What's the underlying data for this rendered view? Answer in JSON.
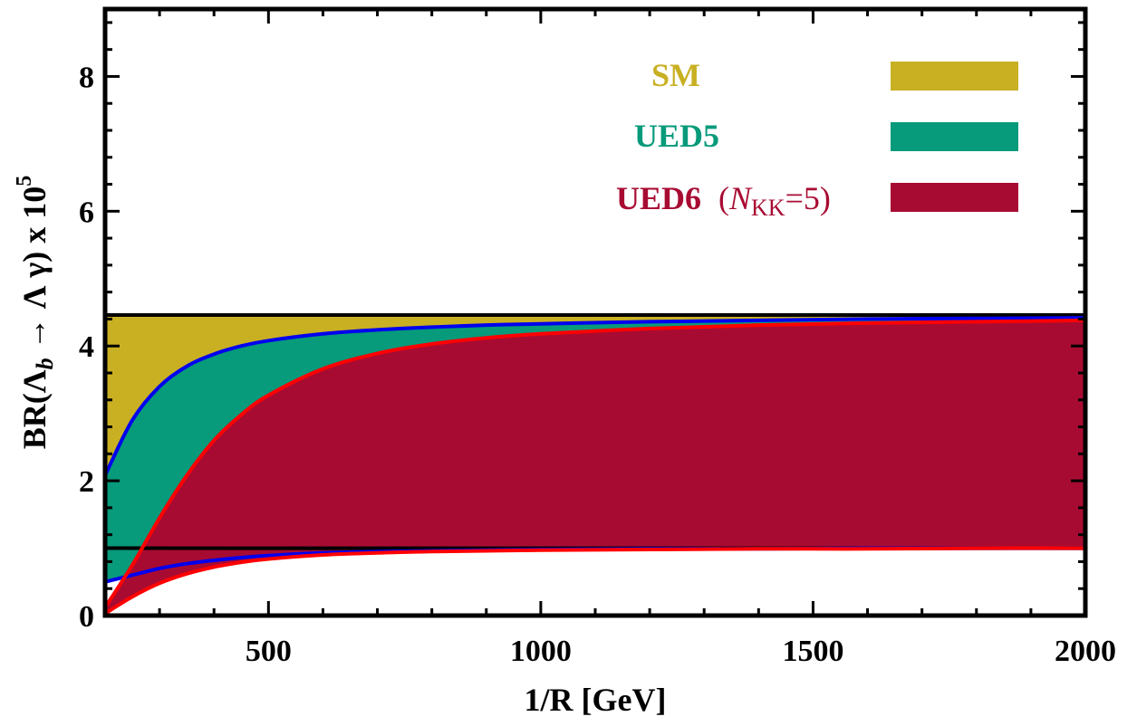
{
  "chart_data": {
    "type": "area",
    "xlabel": "1/R [GeV]",
    "ylabel": {
      "prefix": "BR(Λ",
      "sub": "b",
      "mid": " → Λ γ) x 10",
      "sup": "5"
    },
    "xlim": [
      200,
      2000
    ],
    "ylim": [
      0,
      9
    ],
    "x_ticks": [
      500,
      1000,
      1500,
      2000
    ],
    "y_ticks": [
      0,
      2,
      4,
      6,
      8
    ],
    "x_tick_labels": [
      "500",
      "1000",
      "1500",
      "2000"
    ],
    "y_tick_labels": [
      "0",
      "2",
      "4",
      "6",
      "8"
    ],
    "x_minor_step": 100,
    "y_minor_step": 0.4,
    "grid": false,
    "legend_position": "top-right",
    "legend": [
      {
        "label": "SM",
        "sub_label": "",
        "color": "#C9B023"
      },
      {
        "label": "UED5",
        "sub_label": "",
        "color": "#079A7B"
      },
      {
        "label": "UED6",
        "sub_label": "(N_KK=5)",
        "color": "#A80B32"
      }
    ],
    "sub_label_parts": {
      "open": "(",
      "italic": "N",
      "sub": "KK",
      "rest": "=5)"
    },
    "bands": [
      {
        "name": "SM",
        "color": "#C9B023",
        "edge_color": "#000000",
        "x": [
          200,
          2000
        ],
        "upper": [
          4.46,
          4.46
        ],
        "lower": [
          1.0,
          1.0
        ]
      },
      {
        "name": "UED5",
        "color": "#079A7B",
        "edge_color": "#0000EE",
        "x": [
          200,
          250,
          300,
          350,
          400,
          450,
          500,
          600,
          700,
          800,
          900,
          1000,
          1200,
          1400,
          1600,
          1800,
          2000
        ],
        "upper": [
          2.08,
          2.9,
          3.4,
          3.7,
          3.88,
          4.0,
          4.08,
          4.18,
          4.24,
          4.28,
          4.31,
          4.33,
          4.36,
          4.38,
          4.4,
          4.41,
          4.42
        ],
        "lower": [
          0.5,
          0.6,
          0.7,
          0.77,
          0.82,
          0.86,
          0.89,
          0.93,
          0.95,
          0.96,
          0.97,
          0.98,
          0.99,
          0.99,
          1.0,
          1.0,
          1.0
        ]
      },
      {
        "name": "UED6",
        "color": "#A80B32",
        "edge_color": "#FF0000",
        "x": [
          200,
          250,
          300,
          350,
          400,
          450,
          500,
          600,
          700,
          800,
          900,
          1000,
          1200,
          1400,
          1600,
          1800,
          2000
        ],
        "upper": [
          0.12,
          0.75,
          1.45,
          2.08,
          2.6,
          2.98,
          3.27,
          3.66,
          3.89,
          4.03,
          4.12,
          4.18,
          4.26,
          4.31,
          4.34,
          4.36,
          4.38
        ],
        "lower": [
          0.03,
          0.28,
          0.48,
          0.62,
          0.72,
          0.79,
          0.84,
          0.9,
          0.93,
          0.95,
          0.96,
          0.97,
          0.98,
          0.99,
          0.99,
          1.0,
          1.0
        ]
      }
    ]
  }
}
